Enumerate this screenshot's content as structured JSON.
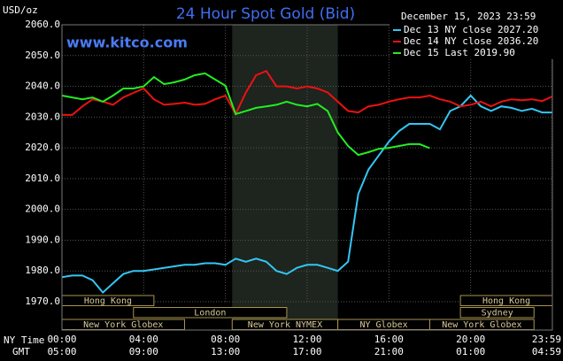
{
  "chart_data": {
    "type": "line",
    "title": "24 Hour Spot Gold (Bid)",
    "subtitle": "www.kitco.com",
    "y_label": "USD/oz",
    "timestamp": "December 15, 2023 23:59",
    "x_label": "NY Time",
    "x2_label": "GMT",
    "x": [
      0,
      0.5,
      1,
      1.5,
      2,
      2.5,
      3,
      3.5,
      4,
      4.5,
      5,
      5.5,
      6,
      6.5,
      7,
      7.5,
      8,
      8.5,
      9,
      9.5,
      10,
      10.5,
      11,
      11.5,
      12,
      12.5,
      13,
      13.5,
      14,
      14.5,
      15,
      15.5,
      16,
      16.5,
      17,
      17.5,
      18,
      18.5,
      19,
      19.5,
      20,
      20.5,
      21,
      21.5,
      22,
      22.5,
      23,
      23.5,
      24
    ],
    "xlim": [
      0,
      24
    ],
    "xticks": [
      {
        "value": 0,
        "label": "00:00"
      },
      {
        "value": 4,
        "label": "04:00"
      },
      {
        "value": 8,
        "label": "08:00"
      },
      {
        "value": 12,
        "label": "12:00"
      },
      {
        "value": 16,
        "label": "16:00"
      },
      {
        "value": 20,
        "label": "20:00"
      },
      {
        "value": 23.98,
        "label": "23:59"
      }
    ],
    "x2ticks": [
      "05:00",
      "09:00",
      "13:00",
      "17:00",
      "21:00",
      "01:00",
      "04:59"
    ],
    "ylim": [
      1970,
      2060
    ],
    "yticks": [
      {
        "value": 1970,
        "label": "1970.0"
      },
      {
        "value": 1980,
        "label": "1980.0"
      },
      {
        "value": 1990,
        "label": "1990.0"
      },
      {
        "value": 2000,
        "label": "2000.0"
      },
      {
        "value": 2010,
        "label": "2010.0"
      },
      {
        "value": 2020,
        "label": "2020.0"
      },
      {
        "value": 2030,
        "label": "2030.0"
      },
      {
        "value": 2040,
        "label": "2040.0"
      },
      {
        "value": 2050,
        "label": "2050.0"
      },
      {
        "value": 2060,
        "label": "2060.0"
      }
    ],
    "grid": true,
    "shaded_x": [
      8.33,
      13.5
    ],
    "series": [
      {
        "name": "Dec 13 NY close 2027.20",
        "color": "#33c6f4",
        "values": [
          1978,
          1978.5,
          1978.5,
          1977,
          1973,
          1976,
          1979,
          1980,
          1980,
          1980.5,
          1981,
          1981.5,
          1982,
          1982,
          1982.5,
          1982.5,
          1982,
          1984,
          1983,
          1984,
          1983,
          1980,
          1979,
          1981,
          1982,
          1982,
          1981,
          1980,
          1983,
          2005,
          2013,
          2017.5,
          2022,
          2025.5,
          2027.8,
          2027.8,
          2027.8,
          2026,
          2032,
          2033.5,
          2037,
          2033.5,
          2032,
          2033.5,
          2033,
          2032,
          2032.7,
          2031.5,
          2031.5
        ]
      },
      {
        "name": "Dec 14 NY close 2036.20",
        "color": "#ee1111",
        "values": [
          2030.7,
          2030.7,
          2033.5,
          2035.8,
          2035,
          2034,
          2036.4,
          2037.9,
          2039.3,
          2035.8,
          2034,
          2034.3,
          2034.7,
          2034,
          2034.3,
          2035.8,
          2037,
          2031,
          2038,
          2043.6,
          2045,
          2040,
          2040,
          2039.3,
          2040,
          2039.3,
          2038,
          2035,
          2032,
          2031.5,
          2033.5,
          2034,
          2035,
          2035.8,
          2036.4,
          2036.4,
          2037,
          2035.8,
          2035,
          2033.5,
          2034,
          2035,
          2033.5,
          2035,
          2035.8,
          2035.5,
          2035.8,
          2035.2,
          2036.7
        ]
      },
      {
        "name": "Dec 15 Last 2019.90",
        "color": "#22ee22",
        "values": [
          2037,
          2036.4,
          2035.8,
          2036.4,
          2035,
          2037,
          2039.3,
          2039.3,
          2040,
          2043,
          2040.7,
          2041.3,
          2042.2,
          2043.6,
          2044.2,
          2042.2,
          2040.2,
          2031,
          2032,
          2033,
          2033.5,
          2034,
          2035,
          2034,
          2033.5,
          2034.3,
          2032,
          2025,
          2020.6,
          2017.7,
          2018.6,
          2019.7,
          2020,
          2020.6,
          2021.2,
          2021.2,
          2019.9,
          null,
          null,
          null,
          null,
          null,
          null,
          null,
          null,
          null,
          null,
          null,
          null
        ]
      }
    ],
    "market_rows": [
      [
        {
          "label": "Hong Kong",
          "start": 0,
          "end": 4.5
        },
        {
          "label": "Hong Kong",
          "start": 19.5,
          "end": 24
        }
      ],
      [
        {
          "label": "London",
          "start": 3.5,
          "end": 11
        },
        {
          "label": "Sydney",
          "start": 19.5,
          "end": 23.1
        }
      ],
      [
        {
          "label": "New York Globex",
          "start": 0,
          "end": 6
        },
        {
          "label": "New York NYMEX",
          "start": 8.33,
          "end": 13.5
        },
        {
          "label": "NY Globex",
          "start": 13.5,
          "end": 18
        },
        {
          "label": "New York Globex",
          "start": 18,
          "end": 23.1
        }
      ]
    ]
  }
}
